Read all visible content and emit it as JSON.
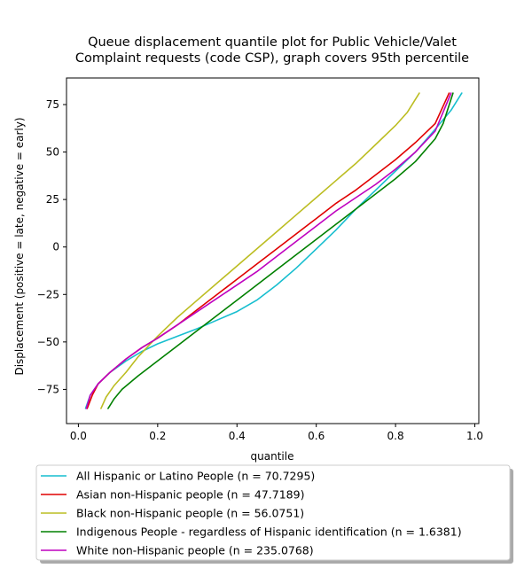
{
  "chart_data": {
    "type": "line",
    "title_lines": [
      "Queue displacement quantile plot for Public Vehicle/Valet",
      "Complaint  requests (code CSP), graph covers 95th percentile"
    ],
    "xlabel": "quantile",
    "ylabel": "Displacement (positive = late, negative = early)",
    "xlim": [
      -0.03,
      1.01
    ],
    "ylim": [
      -93,
      89
    ],
    "x_ticks": [
      0.0,
      0.2,
      0.4,
      0.6,
      0.8,
      1.0
    ],
    "x_tick_labels": [
      "0.0",
      "0.2",
      "0.4",
      "0.6",
      "0.8",
      "1.0"
    ],
    "y_ticks": [
      -75,
      -50,
      -25,
      0,
      25,
      50,
      75
    ],
    "y_tick_labels": [
      "−75",
      "−50",
      "−25",
      "0",
      "25",
      "50",
      "75"
    ],
    "grid": false,
    "legend_position": "below plot",
    "series": [
      {
        "name": "All Hispanic or Latino People (n = 70.7295)",
        "color": "#17becf",
        "points": [
          [
            0.018,
            -85
          ],
          [
            0.03,
            -78
          ],
          [
            0.05,
            -72
          ],
          [
            0.08,
            -66
          ],
          [
            0.12,
            -60
          ],
          [
            0.16,
            -55
          ],
          [
            0.2,
            -51
          ],
          [
            0.25,
            -47
          ],
          [
            0.3,
            -43
          ],
          [
            0.35,
            -38.5
          ],
          [
            0.4,
            -34
          ],
          [
            0.45,
            -28
          ],
          [
            0.5,
            -20
          ],
          [
            0.55,
            -11
          ],
          [
            0.6,
            -1
          ],
          [
            0.65,
            9
          ],
          [
            0.7,
            20
          ],
          [
            0.75,
            30
          ],
          [
            0.8,
            40
          ],
          [
            0.85,
            50
          ],
          [
            0.9,
            62
          ],
          [
            0.94,
            72
          ],
          [
            0.967,
            81
          ]
        ]
      },
      {
        "name": "Asian non-Hispanic people (n = 47.7189)",
        "color": "#e00000",
        "points": [
          [
            0.022,
            -85
          ],
          [
            0.035,
            -78
          ],
          [
            0.05,
            -72
          ],
          [
            0.08,
            -66
          ],
          [
            0.12,
            -59
          ],
          [
            0.16,
            -53
          ],
          [
            0.2,
            -48
          ],
          [
            0.25,
            -41
          ],
          [
            0.3,
            -33
          ],
          [
            0.35,
            -25
          ],
          [
            0.4,
            -17
          ],
          [
            0.45,
            -9
          ],
          [
            0.5,
            -1
          ],
          [
            0.55,
            7
          ],
          [
            0.6,
            15
          ],
          [
            0.65,
            23
          ],
          [
            0.7,
            30
          ],
          [
            0.75,
            38
          ],
          [
            0.8,
            46
          ],
          [
            0.85,
            55
          ],
          [
            0.9,
            65
          ],
          [
            0.935,
            81
          ]
        ]
      },
      {
        "name": "Black non-Hispanic people (n = 56.0751)",
        "color": "#bcbd22",
        "points": [
          [
            0.057,
            -85
          ],
          [
            0.07,
            -79
          ],
          [
            0.09,
            -73
          ],
          [
            0.12,
            -66
          ],
          [
            0.15,
            -58
          ],
          [
            0.2,
            -47
          ],
          [
            0.25,
            -37
          ],
          [
            0.3,
            -28
          ],
          [
            0.35,
            -19
          ],
          [
            0.4,
            -10
          ],
          [
            0.45,
            -1
          ],
          [
            0.5,
            8
          ],
          [
            0.55,
            17
          ],
          [
            0.6,
            26
          ],
          [
            0.65,
            35
          ],
          [
            0.7,
            44
          ],
          [
            0.75,
            54
          ],
          [
            0.8,
            64
          ],
          [
            0.83,
            71
          ],
          [
            0.86,
            81
          ]
        ]
      },
      {
        "name": "Indigenous People - regardless of Hispanic identification (n = 1.6381)",
        "color": "#008000",
        "points": [
          [
            0.075,
            -85
          ],
          [
            0.09,
            -80
          ],
          [
            0.11,
            -75
          ],
          [
            0.15,
            -68
          ],
          [
            0.2,
            -60
          ],
          [
            0.25,
            -52
          ],
          [
            0.3,
            -44
          ],
          [
            0.35,
            -36
          ],
          [
            0.4,
            -28
          ],
          [
            0.45,
            -20
          ],
          [
            0.5,
            -12
          ],
          [
            0.55,
            -4
          ],
          [
            0.6,
            4
          ],
          [
            0.65,
            12
          ],
          [
            0.7,
            20
          ],
          [
            0.75,
            28
          ],
          [
            0.8,
            36
          ],
          [
            0.85,
            45
          ],
          [
            0.9,
            57
          ],
          [
            0.92,
            65
          ],
          [
            0.945,
            81
          ]
        ]
      },
      {
        "name": "White non-Hispanic people (n = 235.0768)",
        "color": "#bf00bf",
        "points": [
          [
            0.02,
            -85
          ],
          [
            0.03,
            -78
          ],
          [
            0.05,
            -72
          ],
          [
            0.08,
            -66
          ],
          [
            0.12,
            -59
          ],
          [
            0.16,
            -53
          ],
          [
            0.2,
            -48
          ],
          [
            0.25,
            -41
          ],
          [
            0.3,
            -34
          ],
          [
            0.35,
            -27
          ],
          [
            0.4,
            -20
          ],
          [
            0.45,
            -13
          ],
          [
            0.5,
            -5
          ],
          [
            0.55,
            3
          ],
          [
            0.6,
            11
          ],
          [
            0.65,
            19
          ],
          [
            0.7,
            26
          ],
          [
            0.75,
            33
          ],
          [
            0.8,
            41
          ],
          [
            0.85,
            50
          ],
          [
            0.9,
            61
          ],
          [
            0.94,
            81
          ]
        ]
      }
    ]
  }
}
